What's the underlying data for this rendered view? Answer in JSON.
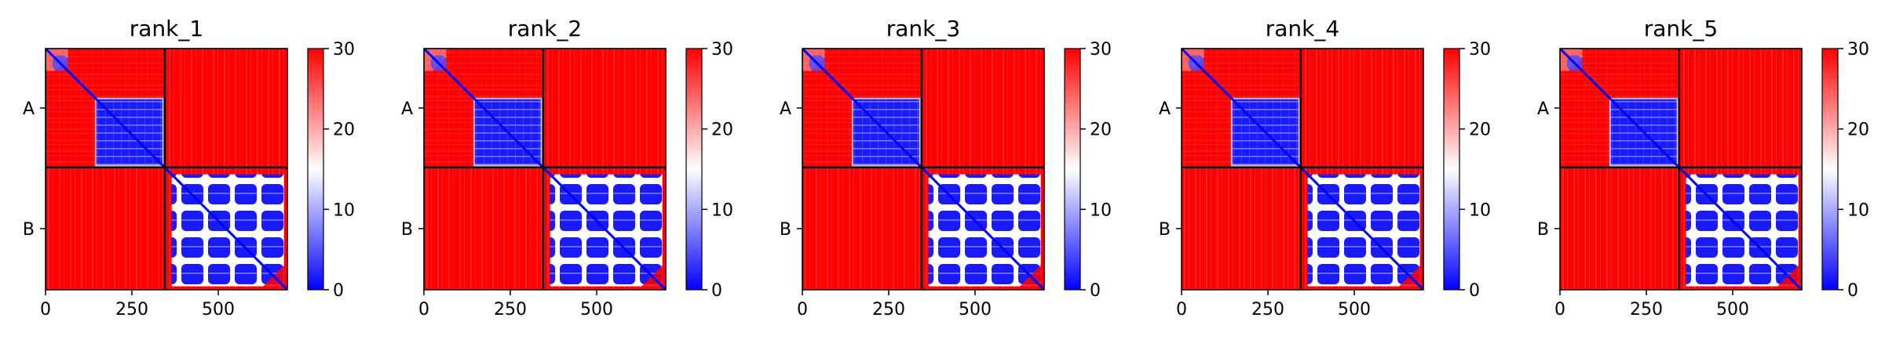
{
  "chart_data": {
    "type": "heatmap",
    "description_note": "",
    "colormap": {
      "name": "bwr",
      "low": "#0000ff",
      "mid": "#ffffff",
      "high": "#ff0000"
    },
    "color_range": [
      0,
      30
    ],
    "colorbar_ticks": [
      "0",
      "10",
      "20",
      "30"
    ],
    "x_ticks": [
      {
        "value": 0,
        "label": "0"
      },
      {
        "value": 250,
        "label": "250"
      },
      {
        "value": 500,
        "label": "500"
      }
    ],
    "x_range": [
      0,
      700
    ],
    "chains": [
      {
        "label": "A",
        "start": 0,
        "end": 345
      },
      {
        "label": "B",
        "start": 345,
        "end": 700
      }
    ],
    "panels": [
      {
        "title": "rank_1"
      },
      {
        "title": "rank_2"
      },
      {
        "title": "rank_3"
      },
      {
        "title": "rank_4"
      },
      {
        "title": "rank_5"
      }
    ]
  }
}
